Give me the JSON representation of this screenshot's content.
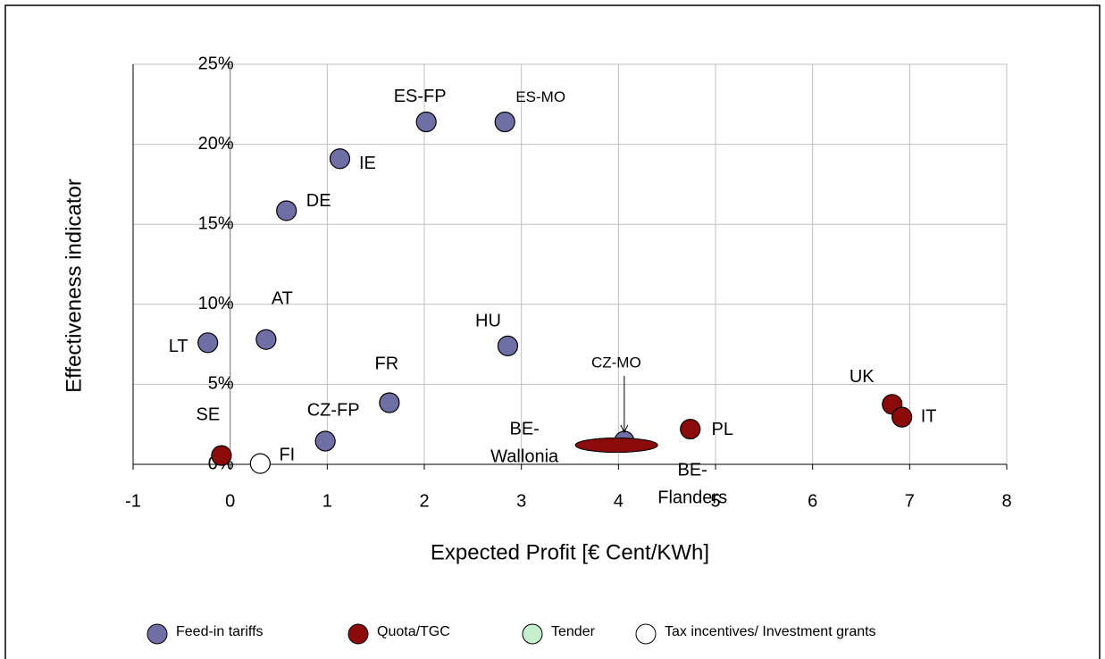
{
  "chart_data": {
    "type": "scatter",
    "xlabel": "Expected Profit [€ Cent/KWh]",
    "ylabel": "Effectiveness indicator",
    "xlim": [
      -1,
      8
    ],
    "xticks": [
      -1,
      0,
      1,
      2,
      3,
      4,
      5,
      6,
      7,
      8
    ],
    "ylim": [
      0,
      25
    ],
    "yticks": [
      {
        "value": 0,
        "label": "0%"
      },
      {
        "value": 5,
        "label": "5%"
      },
      {
        "value": 10,
        "label": "10%"
      },
      {
        "value": 15,
        "label": "15%"
      },
      {
        "value": 20,
        "label": "20%"
      },
      {
        "value": 25,
        "label": "25%"
      }
    ],
    "grid": true,
    "series": [
      {
        "name": "Feed-in tariffs",
        "color": "#6f6fa6",
        "labels": [
          "LT",
          "AT",
          "DE",
          "IE",
          "ES-FP",
          "ES-MO",
          "HU",
          "FR",
          "CZ-FP",
          "CZ-MO"
        ],
        "x": [
          -0.23,
          0.37,
          0.58,
          1.13,
          2.02,
          2.83,
          2.86,
          1.64,
          0.98,
          4.06
        ],
        "values": [
          7.6,
          7.8,
          15.85,
          19.1,
          21.4,
          21.4,
          7.4,
          3.85,
          1.45,
          1.45
        ]
      },
      {
        "name": "Quota/TGC",
        "color": "#8b0a0a",
        "labels": [
          "SE",
          "PL",
          "UK",
          "IT",
          "BE-Wallonia",
          "BE-Flanders"
        ],
        "markers": [
          "circle",
          "circle",
          "circle",
          "circle",
          "ellipse",
          "ellipse"
        ],
        "x": [
          -0.09,
          4.74,
          6.82,
          6.92,
          3.98,
          3.98
        ],
        "values": [
          0.55,
          2.2,
          3.75,
          2.95,
          1.2,
          1.2
        ]
      },
      {
        "name": "Tender",
        "color": "#c6efce",
        "labels": [],
        "x": [],
        "values": []
      },
      {
        "name": "Tax incentives/ Investment grants",
        "color": "#ffffff",
        "labels": [
          "FI"
        ],
        "x": [
          0.31
        ],
        "values": [
          0.05
        ]
      }
    ]
  }
}
